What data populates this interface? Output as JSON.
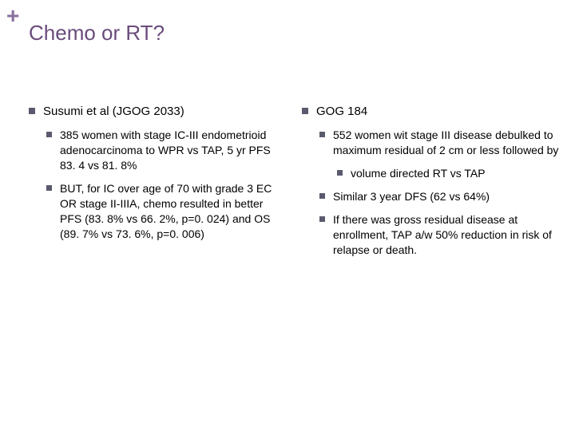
{
  "colors": {
    "accent": "#8b6f9e",
    "title": "#6a4c7c",
    "text": "#000000",
    "bullet": "#5a5a6e",
    "background": "#ffffff"
  },
  "typography": {
    "title_fontsize": 26,
    "body_fontsize": 15,
    "sub_fontsize": 14,
    "font_family": "Arial"
  },
  "plus_symbol": "+",
  "title": "Chemo or RT?",
  "left": {
    "heading": "Susumi et al (JGOG 2033)",
    "items": [
      "385 women with stage IC-III endometrioid adenocarcinoma to WPR vs TAP, 5 yr PFS 83. 4 vs 81. 8%",
      "BUT, for IC over age of 70 with grade 3 EC OR stage II-IIIA, chemo resulted in better PFS (83. 8% vs 66. 2%, p=0. 024) and OS (89. 7% vs 73. 6%, p=0. 006)"
    ]
  },
  "right": {
    "heading": "GOG 184",
    "items": [
      {
        "text": "552 women wit stage III disease debulked to maximum residual of 2 cm or less followed by",
        "sub": [
          "volume directed RT vs TAP"
        ]
      },
      {
        "text": "Similar 3 year DFS (62 vs 64%)"
      },
      {
        "text": "If there was gross residual disease at enrollment, TAP a/w 50% reduction in risk of relapse or death."
      }
    ]
  }
}
